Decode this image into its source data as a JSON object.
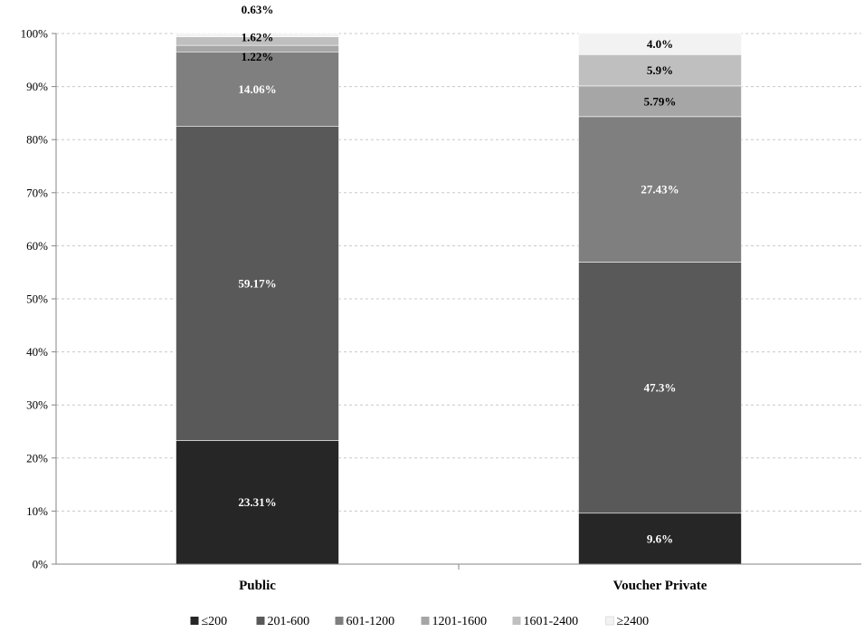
{
  "chart_data": {
    "type": "bar",
    "stacked": true,
    "categories": [
      "Public",
      "Voucher Private"
    ],
    "series": [
      {
        "name": "≤200",
        "values": [
          23.31,
          9.6
        ],
        "color": "#262626"
      },
      {
        "name": "201-600",
        "values": [
          59.17,
          47.3
        ],
        "color": "#595959"
      },
      {
        "name": "601-1200",
        "values": [
          14.06,
          27.43
        ],
        "color": "#7f7f7f"
      },
      {
        "name": "1201-1600",
        "values": [
          1.22,
          5.79
        ],
        "color": "#a6a6a6"
      },
      {
        "name": "1601-2400",
        "values": [
          1.62,
          5.9
        ],
        "color": "#bfbfbf"
      },
      {
        "name": "≥2400",
        "values": [
          0.63,
          4.0
        ],
        "color": "#f2f2f2"
      }
    ],
    "data_labels": [
      [
        "23.31%",
        "59.17%",
        "14.06%",
        "1.22%",
        "1.62%",
        "0.63%"
      ],
      [
        "9.6%",
        "47.3%",
        "27.43%",
        "5.79%",
        "5.9%",
        "4.0%"
      ]
    ],
    "y_ticks": [
      "0%",
      "10%",
      "20%",
      "30%",
      "40%",
      "50%",
      "60%",
      "70%",
      "80%",
      "90%",
      "100%"
    ],
    "ylim": [
      0,
      100
    ],
    "grid": true,
    "legend_position": "bottom"
  }
}
